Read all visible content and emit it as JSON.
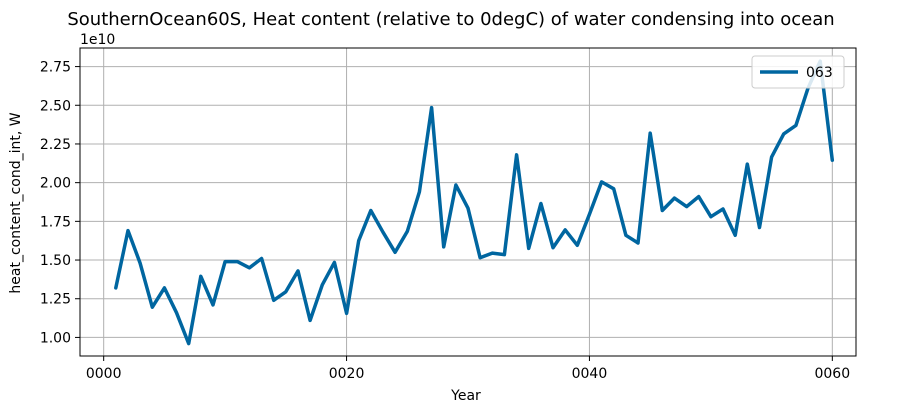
{
  "chart_data": {
    "type": "line",
    "title": "SouthernOcean60S, Heat content (relative to 0degC) of water condensing into ocean",
    "xlabel": "Year",
    "ylabel": "heat_content_cond_int, W",
    "y_offset_label": "1e10",
    "xlim": [
      -1.95,
      61.95
    ],
    "ylim": [
      8800000000.0,
      28700000000.0
    ],
    "x_ticks": [
      0,
      20,
      40,
      60
    ],
    "x_tick_labels": [
      "0000",
      "0020",
      "0040",
      "0060"
    ],
    "y_ticks": [
      10000000000.0,
      12500000000.0,
      15000000000.0,
      17500000000.0,
      20000000000.0,
      22500000000.0,
      25000000000.0,
      27500000000.0
    ],
    "y_tick_labels": [
      "1.00",
      "1.25",
      "1.50",
      "1.75",
      "2.00",
      "2.25",
      "2.50",
      "2.75"
    ],
    "grid": true,
    "legend_position": "top-right",
    "series": [
      {
        "name": "063",
        "color": "#0066a0",
        "x": [
          1,
          2,
          3,
          4,
          5,
          6,
          7,
          8,
          9,
          10,
          11,
          12,
          13,
          14,
          15,
          16,
          17,
          18,
          19,
          20,
          21,
          22,
          23,
          24,
          25,
          26,
          27,
          28,
          29,
          30,
          31,
          32,
          33,
          34,
          35,
          36,
          37,
          38,
          39,
          40,
          41,
          42,
          43,
          44,
          45,
          46,
          47,
          48,
          49,
          50,
          51,
          52,
          53,
          54,
          55,
          56,
          57,
          58,
          59,
          60
        ],
        "values": [
          13200000000.0,
          16900000000.0,
          14800000000.0,
          11950000000.0,
          13200000000.0,
          11600000000.0,
          9600000000.0,
          13950000000.0,
          12100000000.0,
          14900000000.0,
          14900000000.0,
          14500000000.0,
          15100000000.0,
          12400000000.0,
          12950000000.0,
          14300000000.0,
          11100000000.0,
          13400000000.0,
          14850000000.0,
          11550000000.0,
          16250000000.0,
          18200000000.0,
          16800000000.0,
          15500000000.0,
          16850000000.0,
          19400000000.0,
          24850000000.0,
          15850000000.0,
          19850000000.0,
          18350000000.0,
          15150000000.0,
          15450000000.0,
          15350000000.0,
          21800000000.0,
          15750000000.0,
          18650000000.0,
          15800000000.0,
          16950000000.0,
          15950000000.0,
          17950000000.0,
          20050000000.0,
          19600000000.0,
          16600000000.0,
          16100000000.0,
          23200000000.0,
          18200000000.0,
          19000000000.0,
          18450000000.0,
          19100000000.0,
          17800000000.0,
          18300000000.0,
          16600000000.0,
          21200000000.0,
          17100000000.0,
          21650000000.0,
          23150000000.0,
          23700000000.0,
          26100000000.0,
          27850000000.0,
          21450000000.0
        ]
      }
    ]
  }
}
